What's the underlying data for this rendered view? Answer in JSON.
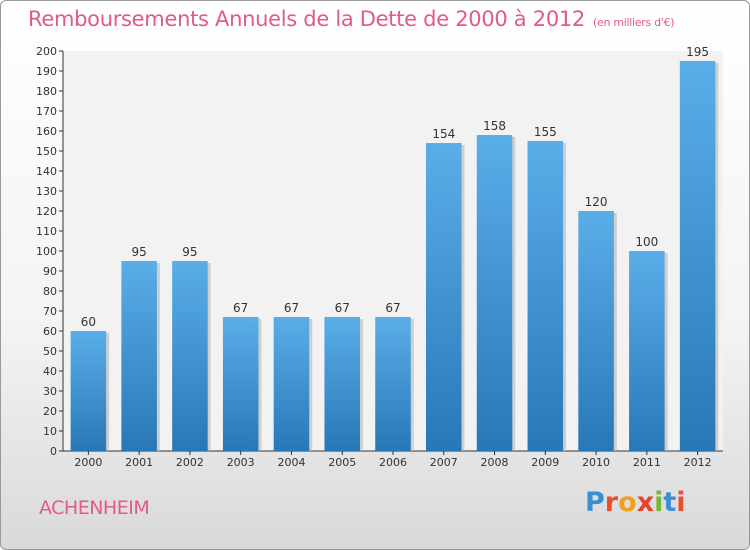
{
  "chart_data": {
    "type": "bar",
    "title": "Remboursements Annuels de la Dette de 2000 à 2012",
    "subtitle": "(en milliers d'€)",
    "categories": [
      "2000",
      "2001",
      "2002",
      "2003",
      "2004",
      "2005",
      "2006",
      "2007",
      "2008",
      "2009",
      "2010",
      "2011",
      "2012"
    ],
    "values": [
      60,
      95,
      95,
      67,
      67,
      67,
      67,
      154,
      158,
      155,
      120,
      100,
      195
    ],
    "ylim": [
      0,
      200
    ],
    "ytick_step": 10,
    "xlabel": "",
    "ylabel": "",
    "grid": false,
    "bar_color_top": "#5aaee8",
    "bar_color_bottom": "#2878b8"
  },
  "footer": {
    "city": "ACHENHEIM",
    "logo_letters": [
      "P",
      "r",
      "o",
      "x",
      "i",
      "t",
      "i"
    ],
    "logo_colors": [
      "#3a8fd0",
      "#e8502a",
      "#f0a020",
      "#e8402a",
      "#78b830",
      "#3a8fd0",
      "#e8502a"
    ]
  },
  "colors": {
    "accent": "#e05a8a"
  }
}
